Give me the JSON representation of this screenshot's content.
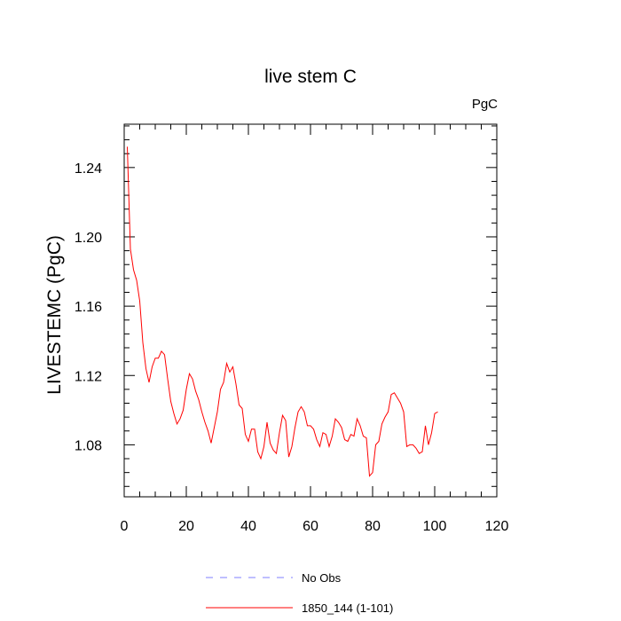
{
  "chart_data": {
    "type": "line",
    "title": "live stem C",
    "units_label": "PgC",
    "xlabel": "",
    "ylabel": "LIVESTEMC  (PgC)",
    "xlim": [
      0,
      120
    ],
    "ylim": [
      1.05,
      1.265
    ],
    "x_ticks": [
      0,
      20,
      40,
      60,
      80,
      100,
      120
    ],
    "y_ticks": [
      1.08,
      1.12,
      1.16,
      1.2,
      1.24
    ],
    "y_tick_labels": [
      "1.08",
      "1.12",
      "1.16",
      "1.20",
      "1.24"
    ],
    "grid": false,
    "legend_position": "bottom",
    "series": [
      {
        "name": "1850_144 (1-101)",
        "color": "#ff0000",
        "style": "solid",
        "x": [
          1,
          2,
          3,
          4,
          5,
          6,
          7,
          8,
          9,
          10,
          11,
          12,
          13,
          14,
          15,
          16,
          17,
          18,
          19,
          20,
          21,
          22,
          23,
          24,
          25,
          26,
          27,
          28,
          29,
          30,
          31,
          32,
          33,
          34,
          35,
          36,
          37,
          38,
          39,
          40,
          41,
          42,
          43,
          44,
          45,
          46,
          47,
          48,
          49,
          50,
          51,
          52,
          53,
          54,
          55,
          56,
          57,
          58,
          59,
          60,
          61,
          62,
          63,
          64,
          65,
          66,
          67,
          68,
          69,
          70,
          71,
          72,
          73,
          74,
          75,
          76,
          77,
          78,
          79,
          80,
          81,
          82,
          83,
          84,
          85,
          86,
          87,
          88,
          89,
          90,
          91,
          92,
          93,
          94,
          95,
          96,
          97,
          98,
          99,
          100,
          101
        ],
        "values": [
          1.252,
          1.193,
          1.181,
          1.175,
          1.163,
          1.139,
          1.124,
          1.116,
          1.125,
          1.13,
          1.13,
          1.134,
          1.132,
          1.118,
          1.105,
          1.098,
          1.092,
          1.095,
          1.1,
          1.112,
          1.121,
          1.118,
          1.111,
          1.106,
          1.099,
          1.093,
          1.088,
          1.081,
          1.09,
          1.099,
          1.112,
          1.116,
          1.127,
          1.122,
          1.125,
          1.115,
          1.103,
          1.101,
          1.086,
          1.082,
          1.089,
          1.089,
          1.076,
          1.072,
          1.079,
          1.093,
          1.081,
          1.077,
          1.075,
          1.087,
          1.097,
          1.094,
          1.073,
          1.079,
          1.09,
          1.099,
          1.102,
          1.099,
          1.091,
          1.091,
          1.089,
          1.083,
          1.079,
          1.087,
          1.086,
          1.079,
          1.085,
          1.095,
          1.093,
          1.09,
          1.083,
          1.082,
          1.086,
          1.085,
          1.095,
          1.091,
          1.085,
          1.084,
          1.062,
          1.064,
          1.08,
          1.082,
          1.092,
          1.096,
          1.099,
          1.109,
          1.11,
          1.107,
          1.104,
          1.099,
          1.079,
          1.08,
          1.08,
          1.078,
          1.075,
          1.076,
          1.091,
          1.08,
          1.087,
          1.098,
          1.099
        ]
      }
    ],
    "legend": [
      {
        "label": "No Obs",
        "color": "#7f7fff",
        "style": "dashed"
      },
      {
        "label": "1850_144 (1-101)",
        "color": "#ff0000",
        "style": "solid"
      }
    ]
  }
}
